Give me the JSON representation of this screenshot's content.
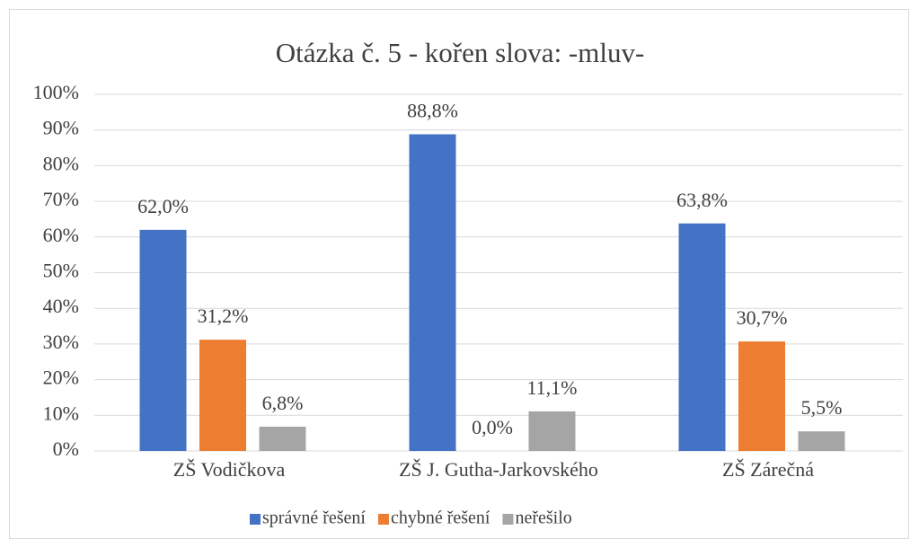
{
  "chart_data": {
    "type": "bar",
    "title": "Otázka č. 5 - kořen slova: -mluv-",
    "categories": [
      "ZŠ Vodičkova",
      "ZŠ J. Gutha-Jarkovského",
      "ZŠ Zárečná"
    ],
    "series": [
      {
        "name": "správné řešení",
        "color": "#4472c4",
        "values": [
          62.0,
          88.8,
          63.8
        ],
        "value_labels": [
          "62,0%",
          "88,8%",
          "63,8%"
        ]
      },
      {
        "name": "chybné řešení",
        "color": "#ed7d31",
        "values": [
          31.2,
          0.0,
          30.7
        ],
        "value_labels": [
          "31,2%",
          "0,0%",
          "30,7%"
        ]
      },
      {
        "name": "neřešilo",
        "color": "#a5a5a5",
        "values": [
          6.8,
          11.1,
          5.5
        ],
        "value_labels": [
          "6,8%",
          "11,1%",
          "5,5%"
        ]
      }
    ],
    "ylim": [
      0,
      100
    ],
    "yticks": [
      {
        "value": 0,
        "label": "0%"
      },
      {
        "value": 10,
        "label": "10%"
      },
      {
        "value": 20,
        "label": "20%"
      },
      {
        "value": 30,
        "label": "30%"
      },
      {
        "value": 40,
        "label": "40%"
      },
      {
        "value": 50,
        "label": "50%"
      },
      {
        "value": 60,
        "label": "60%"
      },
      {
        "value": 70,
        "label": "70%"
      },
      {
        "value": 80,
        "label": "80%"
      },
      {
        "value": 90,
        "label": "90%"
      },
      {
        "value": 100,
        "label": "100%"
      }
    ],
    "grid": true,
    "legend": "bottom"
  }
}
